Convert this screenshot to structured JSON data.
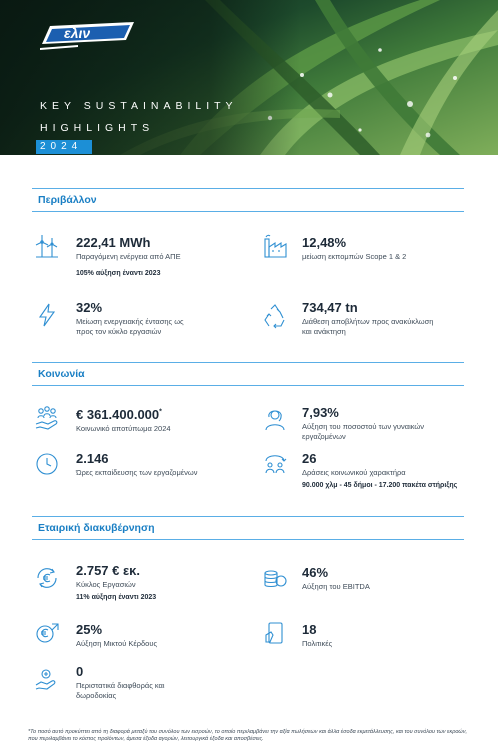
{
  "brand": {
    "logo_text": "ελιν"
  },
  "hero": {
    "title_line1": "KEY SUSTAINABILITY",
    "title_line2": "HIGHLIGHTS",
    "year": "2024"
  },
  "sections": {
    "environment": {
      "heading": "Περιβάλλον",
      "kpis": [
        {
          "value": "222,41 MWh",
          "desc": "Παραγόμενη ενέργεια από ΑΠΕ",
          "icon": "wind-turbine-icon"
        },
        {
          "value": "12,48%",
          "desc": "μείωση εκπομπών Scope 1 & 2",
          "icon": "factory-icon"
        },
        {
          "value": "32%",
          "desc": "Μείωση ενεργειακής έντασης ως προς τον κύκλο εργασιών",
          "icon": "lightning-icon"
        },
        {
          "value": "734,47 tn",
          "desc": "Διάθεση αποβλήτων προς ανακύκλωση και ανάκτηση",
          "icon": "recycle-icon"
        }
      ],
      "note": "105% αύξηση έναντι 2023"
    },
    "society": {
      "heading": "Κοινωνία",
      "kpis": [
        {
          "value": "€ 361.400.000",
          "marker": "*",
          "desc": "Κοινωνικό αποτύπωμα 2024",
          "icon": "community-hand-icon"
        },
        {
          "value": "7,93%",
          "desc": "Αύξηση του ποσοστού των γυναικών εργαζομένων",
          "icon": "woman-icon"
        },
        {
          "value": "2.146",
          "desc": "Ώρες εκπαίδευσης των εργαζομένων",
          "icon": "clock-icon"
        },
        {
          "value": "26",
          "desc": "Δράσεις κοινωνικού χαρακτήρα",
          "icon": "social-actions-icon"
        }
      ],
      "note": "90.000 χλμ - 45 δήμοι - 17.200 πακέτα στήριξης"
    },
    "governance": {
      "heading": "Εταιρική διακυβέρνηση",
      "kpis": [
        {
          "value": "2.757 € εκ.",
          "desc": "Κύκλος Εργασιών",
          "icon": "euro-cycle-icon"
        },
        {
          "value": "46%",
          "desc": "Αύξηση του EBITDA",
          "icon": "coins-icon"
        },
        {
          "value": "25%",
          "desc": "Αύξηση Μικτού Κέρδους",
          "icon": "euro-growth-icon"
        },
        {
          "value": "18",
          "desc": "Πολιτικές",
          "icon": "policy-document-icon"
        },
        {
          "value": "0",
          "desc": "Περιστατικά διαφθοράς και δωροδοκίας",
          "icon": "handshake-icon"
        }
      ],
      "note": "11% αύξηση έναντι 2023"
    }
  },
  "footnote": "*Το ποσό αυτό προκύπτει από τη διαφορά μεταξύ του συνόλου των εισροών, το οποίο περιλαμβάνει την αξία πωλήσεων και άλλα έσοδα εκμετάλλευσης, και του συνόλου των εκροών, που περιλαμβάνει το κόστος προϊόντων, άμεσα έξοδα αγορών, λειτουργικά έξοδα και αποσβέσεις.",
  "colors": {
    "accent": "#1a7fc4",
    "rule": "#5aaee6",
    "icon": "#2f8fd2",
    "year_box": "#1c8fd6"
  }
}
